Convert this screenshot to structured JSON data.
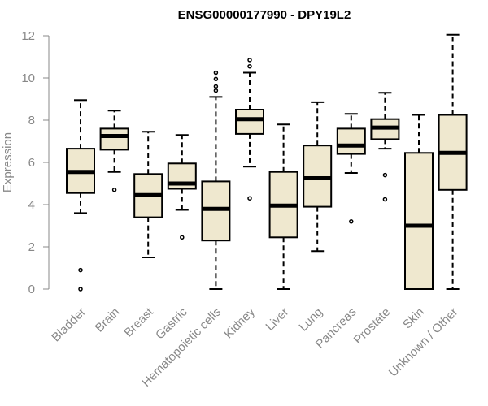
{
  "chart_data": {
    "type": "boxplot",
    "title": "ENSG00000177990 - DPY19L2",
    "xlabel": "",
    "ylabel": "Expression",
    "ylim": [
      0,
      12
    ],
    "yticks": [
      "0",
      "2",
      "4",
      "6",
      "8",
      "10",
      "12"
    ],
    "grid": false,
    "legend": "none",
    "box_fill": "#efe8cf",
    "line_color": "#000000",
    "categories": [
      "Bladder",
      "Brain",
      "Breast",
      "Gastric",
      "Hematopoietic cells",
      "Kidney",
      "Liver",
      "Lung",
      "Pancreas",
      "Prostate",
      "Skin",
      "Unknown / Other"
    ],
    "boxes": [
      {
        "category": "Bladder",
        "whisker_low": 3.6,
        "q1": 4.55,
        "median": 5.55,
        "q3": 6.65,
        "whisker_high": 8.95,
        "outliers": [
          0.9,
          0.0
        ]
      },
      {
        "category": "Brain",
        "whisker_low": 5.55,
        "q1": 6.6,
        "median": 7.25,
        "q3": 7.6,
        "whisker_high": 8.45,
        "outliers": [
          4.7
        ]
      },
      {
        "category": "Breast",
        "whisker_low": 1.5,
        "q1": 3.4,
        "median": 4.45,
        "q3": 5.45,
        "whisker_high": 7.45,
        "outliers": []
      },
      {
        "category": "Gastric",
        "whisker_low": 3.75,
        "q1": 4.75,
        "median": 5.0,
        "q3": 5.95,
        "whisker_high": 7.3,
        "outliers": [
          2.45
        ]
      },
      {
        "category": "Hematopoietic cells",
        "whisker_low": 0.0,
        "q1": 2.3,
        "median": 3.8,
        "q3": 5.1,
        "whisker_high": 9.1,
        "outliers": [
          10.25,
          9.95,
          9.6,
          9.4
        ]
      },
      {
        "category": "Kidney",
        "whisker_low": 5.8,
        "q1": 7.35,
        "median": 8.05,
        "q3": 8.5,
        "whisker_high": 10.25,
        "outliers": [
          10.85,
          10.55,
          4.3
        ]
      },
      {
        "category": "Liver",
        "whisker_low": 0.0,
        "q1": 2.45,
        "median": 3.95,
        "q3": 5.55,
        "whisker_high": 7.8,
        "outliers": []
      },
      {
        "category": "Lung",
        "whisker_low": 1.8,
        "q1": 3.9,
        "median": 5.25,
        "q3": 6.8,
        "whisker_high": 8.85,
        "outliers": []
      },
      {
        "category": "Pancreas",
        "whisker_low": 5.5,
        "q1": 6.4,
        "median": 6.8,
        "q3": 7.6,
        "whisker_high": 8.3,
        "outliers": [
          3.2
        ]
      },
      {
        "category": "Prostate",
        "whisker_low": 6.65,
        "q1": 7.1,
        "median": 7.65,
        "q3": 8.05,
        "whisker_high": 9.3,
        "outliers": [
          5.4,
          4.25
        ]
      },
      {
        "category": "Skin",
        "whisker_low": 0.0,
        "q1": 0.0,
        "median": 3.0,
        "q3": 6.45,
        "whisker_high": 8.25,
        "outliers": []
      },
      {
        "category": "Unknown / Other",
        "whisker_low": 0.0,
        "q1": 4.7,
        "median": 6.45,
        "q3": 8.25,
        "whisker_high": 12.05,
        "outliers": []
      }
    ]
  }
}
